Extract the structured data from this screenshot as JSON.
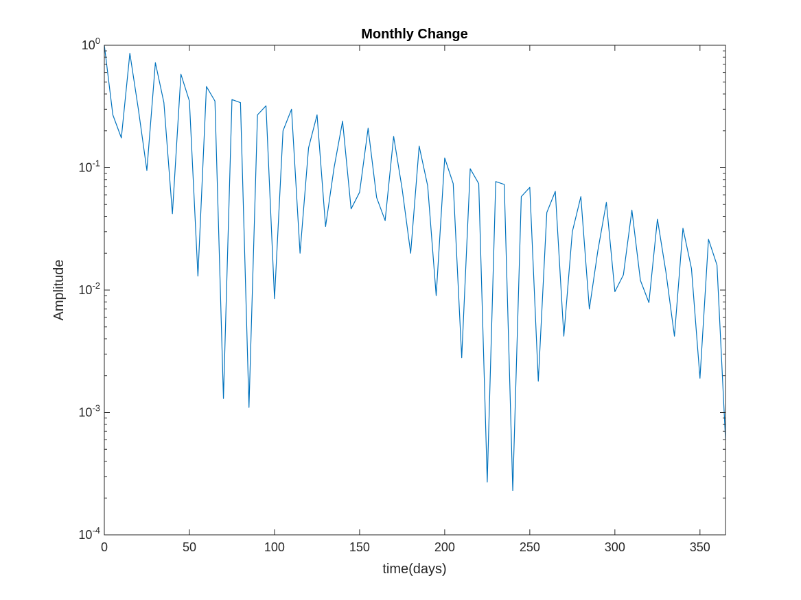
{
  "chart_data": {
    "type": "line",
    "title": "Monthly Change",
    "xlabel": "time(days)",
    "ylabel": "Amplitude",
    "xlim": [
      0,
      365
    ],
    "ylim": [
      0.0001,
      1
    ],
    "yscale": "log",
    "grid": false,
    "box": true,
    "line_color": "#0072BD",
    "x_ticks": [
      0,
      50,
      100,
      150,
      200,
      250,
      300,
      350
    ],
    "x_tick_labels": [
      "0",
      "50",
      "100",
      "150",
      "200",
      "250",
      "300",
      "350"
    ],
    "y_ticks": [
      {
        "value": 1,
        "base": "10",
        "exp": "0"
      },
      {
        "value": 0.1,
        "base": "10",
        "exp": "-1"
      },
      {
        "value": 0.01,
        "base": "10",
        "exp": "-2"
      },
      {
        "value": 0.001,
        "base": "10",
        "exp": "-3"
      },
      {
        "value": 0.0001,
        "base": "10",
        "exp": "-4"
      }
    ],
    "series": [
      {
        "x": [
          0,
          5,
          10,
          15,
          20,
          25,
          30,
          35,
          40,
          45,
          50,
          55,
          60,
          65,
          70,
          75,
          80,
          85,
          90,
          95,
          100,
          105,
          110,
          115,
          120,
          125,
          130,
          135,
          140,
          145,
          150,
          155,
          160,
          165,
          170,
          175,
          180,
          185,
          190,
          195,
          200,
          205,
          210,
          215,
          220,
          225,
          230,
          235,
          240,
          245,
          250,
          255,
          260,
          265,
          270,
          275,
          280,
          285,
          290,
          295,
          300,
          305,
          310,
          315,
          320,
          325,
          330,
          335,
          340,
          345,
          350,
          355,
          360,
          365
        ],
        "y": [
          1.0,
          0.27,
          0.175,
          0.86,
          0.3,
          0.095,
          0.72,
          0.34,
          0.042,
          0.58,
          0.35,
          0.013,
          0.46,
          0.35,
          0.0013,
          0.36,
          0.34,
          0.0011,
          0.27,
          0.32,
          0.0085,
          0.2,
          0.3,
          0.02,
          0.145,
          0.27,
          0.033,
          0.1,
          0.24,
          0.046,
          0.063,
          0.21,
          0.057,
          0.037,
          0.18,
          0.067,
          0.02,
          0.15,
          0.071,
          0.009,
          0.12,
          0.074,
          0.0028,
          0.098,
          0.074,
          0.00027,
          0.077,
          0.073,
          0.00023,
          0.058,
          0.069,
          0.0018,
          0.043,
          0.064,
          0.0042,
          0.03,
          0.058,
          0.007,
          0.021,
          0.052,
          0.0097,
          0.0133,
          0.045,
          0.012,
          0.0079,
          0.038,
          0.014,
          0.0042,
          0.032,
          0.015,
          0.0019,
          0.026,
          0.016,
          0.0006
        ]
      }
    ]
  }
}
